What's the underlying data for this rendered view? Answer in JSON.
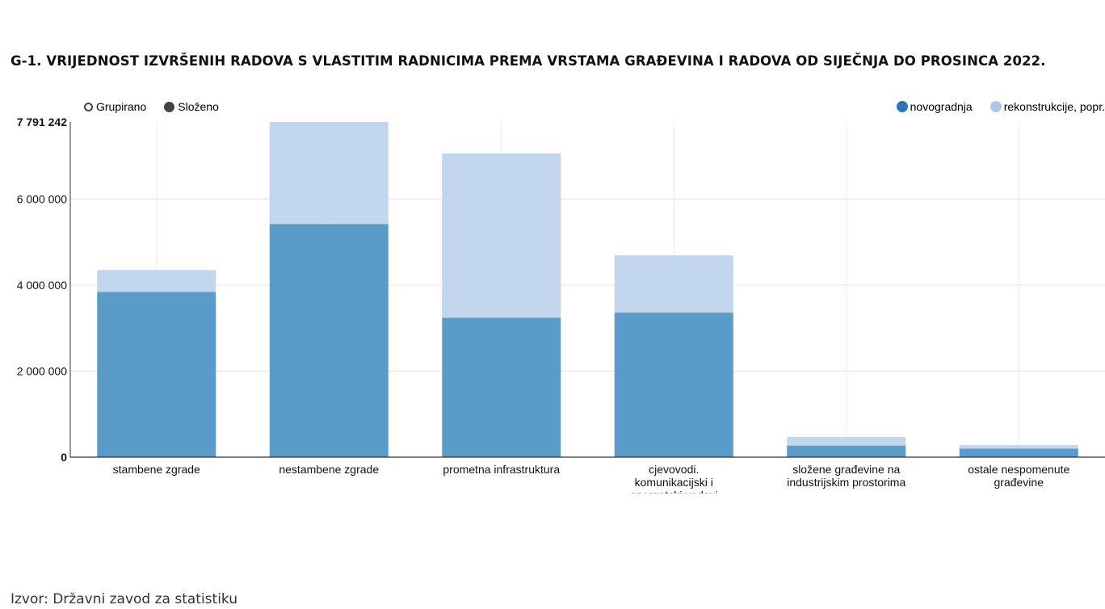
{
  "title": "G-1. VRIJEDNOST IZVRŠENIH RADOVA S VLASTITIM RADNICIMA PREMA VRSTAMA GRAĐEVINA I RADOVA OD SIJEČNJA DO PROSINCA 2022.",
  "controls": {
    "grouped_label": "Grupirano",
    "stacked_label": "Složeno"
  },
  "source": "Izvor: Državni zavod za statistiku",
  "chart_data": {
    "type": "bar",
    "stacked": true,
    "categories": [
      "stambene zgrade",
      "nestambene zgrade",
      "prometna infrastruktura",
      "cjevovodi. komunikacijski i energetski vodovi",
      "složene građevine na industrijskim prostorima",
      "ostale nespomenute građevine"
    ],
    "series": [
      {
        "name": "novogradnja",
        "color": "#2878b5",
        "values": [
          3840000,
          5420000,
          3240000,
          3360000,
          270000,
          200000
        ]
      },
      {
        "name": "rekonstrukcije, popr.",
        "color": "#aec7e8",
        "values": [
          510000,
          2371242,
          3820000,
          1330000,
          200000,
          80000
        ]
      }
    ],
    "y_ticks": [
      0,
      2000000,
      4000000,
      6000000,
      7791242
    ],
    "y_tick_labels": [
      "0",
      "2 000 000",
      "4 000 000",
      "6 000 000",
      "7 791 242"
    ],
    "ylim": [
      0,
      7791242
    ],
    "grid": true,
    "legend_position": "top-right"
  }
}
